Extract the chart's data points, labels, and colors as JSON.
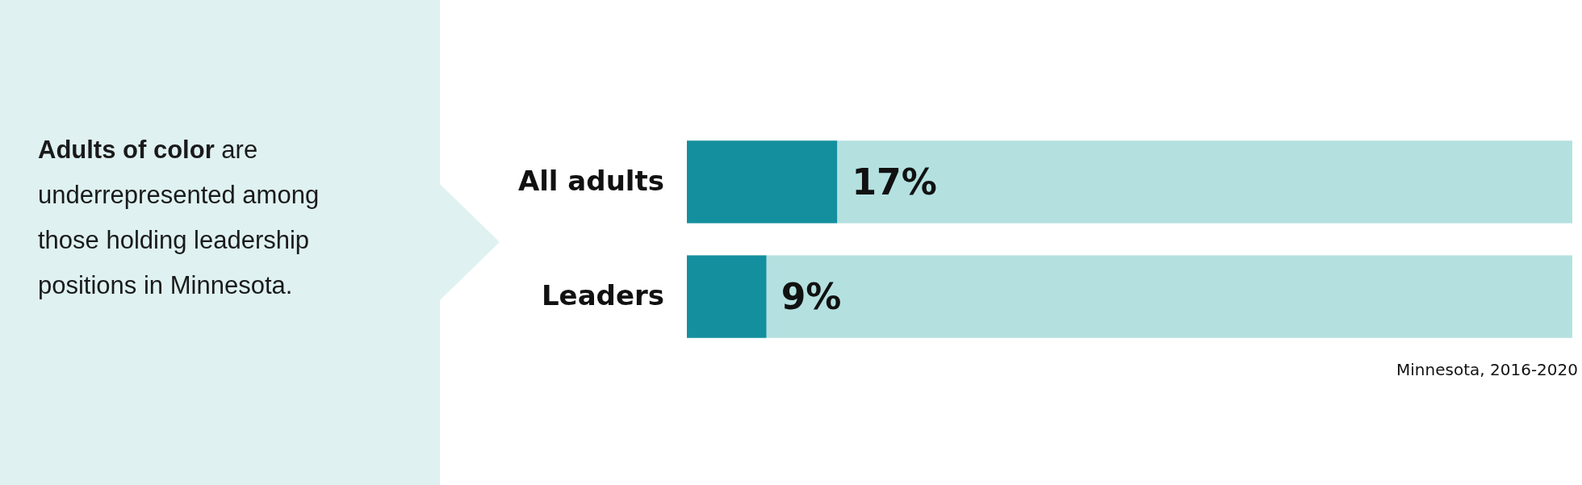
{
  "chart_data": {
    "type": "bar",
    "orientation": "horizontal",
    "stacked": true,
    "title": "Adults of color",
    "subtitle": "are underrepresented among those holding leadership positions in Minnesota.",
    "categories": [
      "All adults",
      "Leaders"
    ],
    "series": [
      {
        "color": "#138f9e",
        "values": [
          17,
          9
        ],
        "value_labels": [
          "17%",
          "9%"
        ]
      },
      {
        "color": "#b4e1e0",
        "values": [
          83,
          91
        ]
      }
    ],
    "xlim": [
      0,
      100
    ],
    "tick_labels": "y",
    "annotations": [
      "Minnesota, 2016-2020"
    ]
  }
}
